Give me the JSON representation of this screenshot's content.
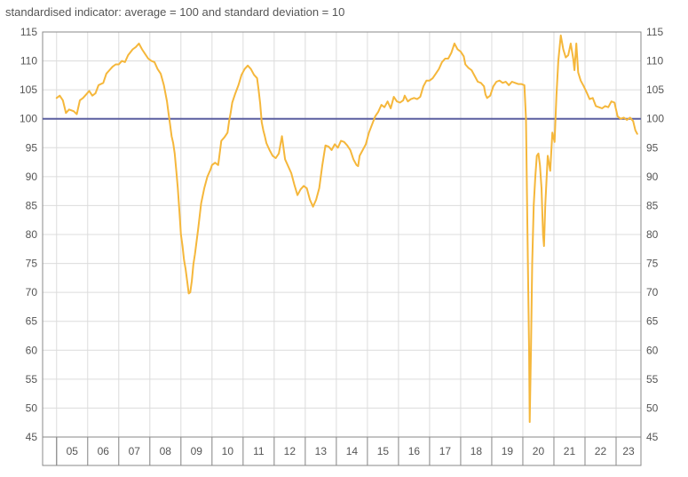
{
  "chart_data": {
    "type": "line",
    "subtitle": "standardised indicator: average = 100 and standard deviation = 10",
    "xlabel": "",
    "ylabel": "",
    "x_categories": [
      "05",
      "06",
      "07",
      "08",
      "09",
      "10",
      "11",
      "12",
      "13",
      "14",
      "15",
      "16",
      "17",
      "18",
      "19",
      "20",
      "21",
      "22",
      "23"
    ],
    "ylim": [
      45,
      115
    ],
    "yticks": [
      45,
      50,
      55,
      60,
      65,
      70,
      75,
      80,
      85,
      90,
      95,
      100,
      105,
      110,
      115
    ],
    "y_axes": [
      "left",
      "right"
    ],
    "grid": true,
    "legend": "none",
    "reference_line": {
      "y": 100,
      "color": "#5b5fa0"
    },
    "series": [
      {
        "color": "#f5b73b",
        "points": [
          [
            2005.0,
            103.6
          ],
          [
            2005.1,
            104.0
          ],
          [
            2005.2,
            103.2
          ],
          [
            2005.3,
            101.0
          ],
          [
            2005.4,
            101.6
          ],
          [
            2005.55,
            101.3
          ],
          [
            2005.65,
            100.8
          ],
          [
            2005.75,
            103.2
          ],
          [
            2005.85,
            103.6
          ],
          [
            2005.95,
            104.2
          ],
          [
            2006.05,
            104.8
          ],
          [
            2006.15,
            104.0
          ],
          [
            2006.25,
            104.4
          ],
          [
            2006.35,
            105.8
          ],
          [
            2006.5,
            106.2
          ],
          [
            2006.6,
            107.8
          ],
          [
            2006.7,
            108.4
          ],
          [
            2006.8,
            109.0
          ],
          [
            2006.9,
            109.4
          ],
          [
            2007.0,
            109.4
          ],
          [
            2007.1,
            110.0
          ],
          [
            2007.2,
            109.8
          ],
          [
            2007.3,
            111.0
          ],
          [
            2007.45,
            112.0
          ],
          [
            2007.55,
            112.4
          ],
          [
            2007.65,
            113.0
          ],
          [
            2007.75,
            112.0
          ],
          [
            2007.85,
            111.2
          ],
          [
            2007.95,
            110.4
          ],
          [
            2008.05,
            110.0
          ],
          [
            2008.15,
            109.8
          ],
          [
            2008.25,
            108.6
          ],
          [
            2008.35,
            107.8
          ],
          [
            2008.45,
            105.8
          ],
          [
            2008.55,
            103.0
          ],
          [
            2008.6,
            101.0
          ],
          [
            2008.65,
            99.0
          ],
          [
            2008.7,
            97.0
          ],
          [
            2008.75,
            95.8
          ],
          [
            2008.8,
            94.0
          ],
          [
            2008.85,
            91.0
          ],
          [
            2008.9,
            88.0
          ],
          [
            2008.95,
            84.0
          ],
          [
            2009.0,
            80.0
          ],
          [
            2009.05,
            78.0
          ],
          [
            2009.1,
            75.6
          ],
          [
            2009.15,
            74.0
          ],
          [
            2009.2,
            72.0
          ],
          [
            2009.25,
            69.8
          ],
          [
            2009.3,
            70.0
          ],
          [
            2009.35,
            72.0
          ],
          [
            2009.4,
            74.8
          ],
          [
            2009.45,
            76.6
          ],
          [
            2009.55,
            80.8
          ],
          [
            2009.65,
            85.4
          ],
          [
            2009.75,
            88.0
          ],
          [
            2009.85,
            90.0
          ],
          [
            2009.95,
            91.2
          ],
          [
            2010.0,
            92.0
          ],
          [
            2010.1,
            92.4
          ],
          [
            2010.2,
            92.0
          ],
          [
            2010.3,
            96.2
          ],
          [
            2010.4,
            96.8
          ],
          [
            2010.5,
            97.6
          ],
          [
            2010.55,
            99.6
          ],
          [
            2010.6,
            101.0
          ],
          [
            2010.65,
            102.8
          ],
          [
            2010.75,
            104.4
          ],
          [
            2010.85,
            105.8
          ],
          [
            2010.95,
            107.6
          ],
          [
            2011.05,
            108.6
          ],
          [
            2011.15,
            109.2
          ],
          [
            2011.25,
            108.6
          ],
          [
            2011.35,
            107.6
          ],
          [
            2011.45,
            107.0
          ],
          [
            2011.5,
            105.0
          ],
          [
            2011.55,
            102.6
          ],
          [
            2011.6,
            99.4
          ],
          [
            2011.65,
            98.0
          ],
          [
            2011.7,
            97.0
          ],
          [
            2011.75,
            95.8
          ],
          [
            2011.85,
            94.6
          ],
          [
            2011.95,
            93.6
          ],
          [
            2012.05,
            93.2
          ],
          [
            2012.15,
            94.0
          ],
          [
            2012.25,
            97.0
          ],
          [
            2012.35,
            93.0
          ],
          [
            2012.45,
            91.8
          ],
          [
            2012.55,
            90.6
          ],
          [
            2012.65,
            88.6
          ],
          [
            2012.75,
            86.8
          ],
          [
            2012.85,
            87.8
          ],
          [
            2012.95,
            88.4
          ],
          [
            2013.05,
            88.0
          ],
          [
            2013.15,
            86.0
          ],
          [
            2013.25,
            84.8
          ],
          [
            2013.35,
            86.0
          ],
          [
            2013.45,
            88.0
          ],
          [
            2013.55,
            92.0
          ],
          [
            2013.65,
            95.4
          ],
          [
            2013.75,
            95.2
          ],
          [
            2013.85,
            94.6
          ],
          [
            2013.95,
            95.6
          ],
          [
            2014.05,
            95.0
          ],
          [
            2014.15,
            96.2
          ],
          [
            2014.25,
            96.0
          ],
          [
            2014.35,
            95.4
          ],
          [
            2014.45,
            94.6
          ],
          [
            2014.55,
            93.0
          ],
          [
            2014.65,
            92.0
          ],
          [
            2014.7,
            91.8
          ],
          [
            2014.75,
            93.6
          ],
          [
            2014.85,
            94.6
          ],
          [
            2014.95,
            95.6
          ],
          [
            2015.05,
            97.6
          ],
          [
            2015.15,
            99.0
          ],
          [
            2015.25,
            100.4
          ],
          [
            2015.35,
            101.2
          ],
          [
            2015.45,
            102.4
          ],
          [
            2015.55,
            102.0
          ],
          [
            2015.65,
            103.0
          ],
          [
            2015.75,
            101.8
          ],
          [
            2015.85,
            103.8
          ],
          [
            2015.95,
            103.0
          ],
          [
            2016.05,
            102.8
          ],
          [
            2016.15,
            103.2
          ],
          [
            2016.2,
            104.0
          ],
          [
            2016.3,
            103.0
          ],
          [
            2016.4,
            103.4
          ],
          [
            2016.5,
            103.6
          ],
          [
            2016.6,
            103.4
          ],
          [
            2016.7,
            103.8
          ],
          [
            2016.8,
            105.6
          ],
          [
            2016.9,
            106.6
          ],
          [
            2017.0,
            106.6
          ],
          [
            2017.1,
            107.0
          ],
          [
            2017.2,
            107.8
          ],
          [
            2017.3,
            108.6
          ],
          [
            2017.4,
            109.8
          ],
          [
            2017.5,
            110.4
          ],
          [
            2017.6,
            110.4
          ],
          [
            2017.7,
            111.4
          ],
          [
            2017.8,
            113.0
          ],
          [
            2017.9,
            112.0
          ],
          [
            2018.0,
            111.6
          ],
          [
            2018.1,
            110.8
          ],
          [
            2018.15,
            109.4
          ],
          [
            2018.25,
            108.8
          ],
          [
            2018.35,
            108.4
          ],
          [
            2018.45,
            107.4
          ],
          [
            2018.55,
            106.4
          ],
          [
            2018.65,
            106.2
          ],
          [
            2018.75,
            105.6
          ],
          [
            2018.8,
            104.2
          ],
          [
            2018.85,
            103.6
          ],
          [
            2018.95,
            104.0
          ],
          [
            2019.05,
            105.6
          ],
          [
            2019.15,
            106.4
          ],
          [
            2019.25,
            106.6
          ],
          [
            2019.35,
            106.2
          ],
          [
            2019.45,
            106.4
          ],
          [
            2019.55,
            105.8
          ],
          [
            2019.65,
            106.4
          ],
          [
            2019.75,
            106.2
          ],
          [
            2019.85,
            106.0
          ],
          [
            2019.95,
            106.0
          ],
          [
            2020.05,
            105.8
          ],
          [
            2020.1,
            100.0
          ],
          [
            2020.15,
            80.0
          ],
          [
            2020.2,
            60.0
          ],
          [
            2020.22,
            47.6
          ],
          [
            2020.26,
            60.0
          ],
          [
            2020.3,
            75.0
          ],
          [
            2020.35,
            85.0
          ],
          [
            2020.4,
            90.0
          ],
          [
            2020.45,
            93.6
          ],
          [
            2020.5,
            94.0
          ],
          [
            2020.55,
            92.0
          ],
          [
            2020.6,
            88.0
          ],
          [
            2020.65,
            80.0
          ],
          [
            2020.68,
            78.0
          ],
          [
            2020.72,
            85.0
          ],
          [
            2020.8,
            93.6
          ],
          [
            2020.88,
            91.0
          ],
          [
            2020.95,
            97.6
          ],
          [
            2021.02,
            96.0
          ],
          [
            2021.08,
            104.0
          ],
          [
            2021.14,
            110.0
          ],
          [
            2021.22,
            114.4
          ],
          [
            2021.3,
            112.0
          ],
          [
            2021.38,
            110.6
          ],
          [
            2021.46,
            111.0
          ],
          [
            2021.54,
            113.0
          ],
          [
            2021.62,
            110.4
          ],
          [
            2021.66,
            108.4
          ],
          [
            2021.72,
            113.0
          ],
          [
            2021.78,
            108.0
          ],
          [
            2021.86,
            106.6
          ],
          [
            2021.96,
            105.6
          ],
          [
            2022.05,
            104.6
          ],
          [
            2022.15,
            103.4
          ],
          [
            2022.25,
            103.6
          ],
          [
            2022.35,
            102.2
          ],
          [
            2022.45,
            102.0
          ],
          [
            2022.55,
            101.8
          ],
          [
            2022.65,
            102.2
          ],
          [
            2022.75,
            102.0
          ],
          [
            2022.85,
            103.0
          ],
          [
            2022.95,
            102.8
          ],
          [
            2023.05,
            100.4
          ],
          [
            2023.15,
            100.0
          ],
          [
            2023.25,
            100.2
          ],
          [
            2023.35,
            99.8
          ],
          [
            2023.45,
            100.2
          ],
          [
            2023.55,
            99.6
          ],
          [
            2023.62,
            98.0
          ],
          [
            2023.68,
            97.4
          ]
        ]
      }
    ]
  }
}
